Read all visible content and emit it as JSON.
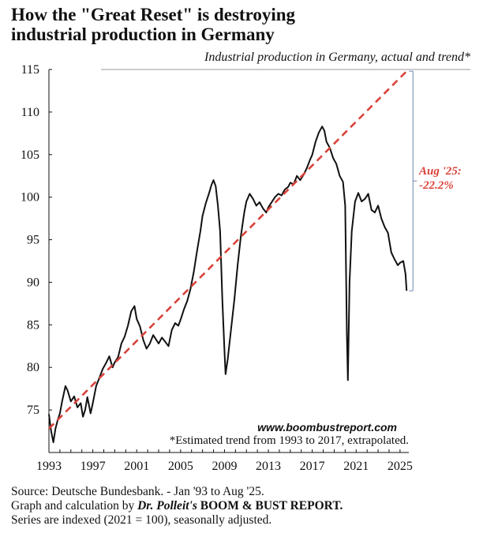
{
  "header": {
    "title_line1": "How the \"Great Reset\" is destroying",
    "title_line2": "industrial production in Germany",
    "subtitle": "Industrial production in Germany, actual and trend*"
  },
  "chart_data": {
    "type": "line",
    "title": "How the \"Great Reset\" is destroying industrial production in Germany",
    "subtitle": "Industrial production in Germany, actual and trend*",
    "xlim": [
      1993,
      2025.8
    ],
    "ylim": [
      70,
      115
    ],
    "x_ticks": [
      "1993",
      "1997",
      "2001",
      "2005",
      "2009",
      "2013",
      "2017",
      "2021",
      "2025"
    ],
    "y_ticks": [
      "75",
      "80",
      "85",
      "90",
      "95",
      "100",
      "105",
      "110",
      "115"
    ],
    "grid": false,
    "series": [
      {
        "color": "#111111",
        "style": "solid",
        "x": [
          1993.0,
          1993.2,
          1993.4,
          1993.6,
          1993.8,
          1994.0,
          1994.2,
          1994.5,
          1994.7,
          1995.0,
          1995.3,
          1995.6,
          1995.9,
          1996.1,
          1996.3,
          1996.5,
          1996.8,
          1997.0,
          1997.3,
          1997.6,
          1997.9,
          1998.2,
          1998.5,
          1998.8,
          1999.0,
          1999.3,
          1999.6,
          1999.9,
          2000.2,
          2000.5,
          2000.8,
          2001.0,
          2001.3,
          2001.6,
          2001.9,
          2002.2,
          2002.5,
          2002.8,
          2003.0,
          2003.3,
          2003.6,
          2003.9,
          2004.2,
          2004.5,
          2004.8,
          2005.0,
          2005.3,
          2005.6,
          2005.9,
          2006.2,
          2006.5,
          2006.8,
          2007.0,
          2007.3,
          2007.6,
          2007.8,
          2008.0,
          2008.2,
          2008.4,
          2008.6,
          2008.8,
          2009.0,
          2009.1,
          2009.3,
          2009.6,
          2009.9,
          2010.2,
          2010.5,
          2010.8,
          2011.0,
          2011.3,
          2011.6,
          2011.9,
          2012.2,
          2012.5,
          2012.8,
          2013.0,
          2013.3,
          2013.6,
          2013.9,
          2014.2,
          2014.5,
          2014.8,
          2015.0,
          2015.3,
          2015.6,
          2015.9,
          2016.2,
          2016.5,
          2016.8,
          2017.0,
          2017.3,
          2017.6,
          2017.9,
          2018.1,
          2018.3,
          2018.6,
          2018.9,
          2019.2,
          2019.5,
          2019.8,
          2020.0,
          2020.15,
          2020.25,
          2020.4,
          2020.6,
          2020.9,
          2021.2,
          2021.5,
          2021.8,
          2022.1,
          2022.4,
          2022.7,
          2023.0,
          2023.3,
          2023.6,
          2023.9,
          2024.2,
          2024.5,
          2024.8,
          2025.0,
          2025.3,
          2025.5,
          2025.6
        ],
        "y": [
          74.5,
          72.5,
          71.2,
          72.8,
          73.8,
          74.6,
          76.0,
          77.8,
          77.3,
          76.0,
          76.6,
          75.3,
          75.8,
          74.2,
          75.0,
          76.5,
          74.6,
          75.8,
          77.8,
          78.8,
          79.8,
          80.5,
          81.3,
          80.0,
          80.6,
          81.2,
          82.8,
          83.6,
          84.9,
          86.6,
          87.2,
          85.7,
          84.8,
          83.2,
          82.2,
          82.8,
          83.8,
          83.2,
          82.8,
          83.5,
          83.0,
          82.5,
          84.4,
          85.2,
          84.9,
          85.6,
          86.8,
          87.8,
          89.2,
          91.2,
          93.7,
          96.0,
          97.8,
          99.3,
          100.5,
          101.4,
          102.0,
          101.3,
          99.0,
          96.0,
          88.0,
          82.0,
          79.2,
          81.0,
          84.5,
          88.0,
          92.0,
          95.5,
          98.2,
          99.5,
          100.4,
          99.8,
          99.0,
          99.4,
          98.7,
          98.2,
          98.8,
          99.4,
          100.0,
          100.4,
          100.2,
          100.9,
          101.2,
          101.7,
          101.5,
          102.5,
          102.0,
          102.6,
          103.4,
          104.4,
          105.0,
          106.5,
          107.6,
          108.3,
          107.8,
          106.5,
          105.8,
          104.6,
          103.9,
          102.5,
          101.8,
          99.0,
          84.0,
          78.5,
          90.0,
          96.0,
          99.5,
          100.5,
          99.5,
          99.8,
          100.4,
          98.5,
          98.2,
          99.0,
          97.5,
          96.5,
          95.8,
          93.5,
          92.7,
          92.0,
          92.3,
          92.5,
          91.0,
          89.0
        ]
      },
      {
        "color": "#d9433a",
        "style": "dashed",
        "x": [
          1993.0,
          2025.6
        ],
        "y": [
          72.8,
          114.8
        ]
      }
    ],
    "annotations": [
      {
        "text": "Aug '25:",
        "color": "#d9433a"
      },
      {
        "text": "-22.2%",
        "color": "#d9433a"
      }
    ],
    "website": "www.boombustreport.com",
    "note": "*Estimated trend from 1993 to 2017, extrapolated."
  },
  "footer": {
    "line1": "Source: Deutsche Bundesbank. - Jan '93 to Aug '25.",
    "line2_prefix": "Graph and calculation by ",
    "line2_author": "Dr. Polleit's",
    "line2_report": "BOOM & BUST REPORT.",
    "line3": "Series are indexed (2021 = 100), seasonally adjusted."
  }
}
